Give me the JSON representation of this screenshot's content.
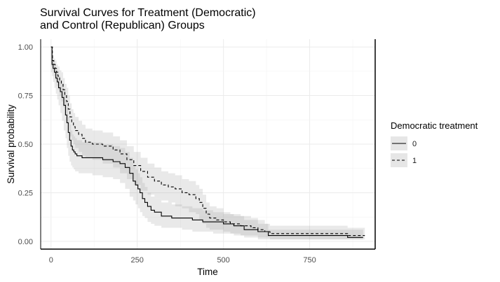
{
  "chart_data": {
    "type": "line",
    "subtype": "step",
    "title_lines": [
      "Survival Curves for Treatment (Democratic)",
      "and Control (Republican) Groups"
    ],
    "xlabel": "Time",
    "ylabel": "Survival probability",
    "xlim": [
      -30,
      940
    ],
    "ylim": [
      -0.04,
      1.04
    ],
    "xticks": [
      0,
      250,
      500,
      750
    ],
    "xtick_labels": [
      "0",
      "250",
      "500",
      "750"
    ],
    "yticks": [
      0,
      0.25,
      0.5,
      0.75,
      1
    ],
    "ytick_labels": [
      "0.00",
      "0.25",
      "0.50",
      "0.75",
      "1.00"
    ],
    "grid": true,
    "legend": {
      "title": "Democratic treatment",
      "position": "right",
      "entries": [
        "0",
        "1"
      ]
    },
    "series": [
      {
        "name": "0",
        "line_style": "solid",
        "color": "#000000",
        "x": [
          0,
          3,
          6,
          10,
          14,
          18,
          22,
          27,
          32,
          37,
          42,
          46,
          50,
          54,
          58,
          62,
          66,
          70,
          75,
          80,
          90,
          100,
          120,
          150,
          180,
          200,
          215,
          228,
          238,
          245,
          252,
          258,
          265,
          272,
          280,
          290,
          300,
          320,
          350,
          380,
          410,
          440,
          470,
          500,
          530,
          560,
          600,
          630,
          860,
          905
        ],
        "y": [
          1.0,
          0.91,
          0.89,
          0.87,
          0.84,
          0.82,
          0.79,
          0.77,
          0.74,
          0.7,
          0.65,
          0.61,
          0.56,
          0.52,
          0.49,
          0.47,
          0.46,
          0.45,
          0.44,
          0.44,
          0.43,
          0.43,
          0.43,
          0.42,
          0.41,
          0.4,
          0.38,
          0.35,
          0.31,
          0.29,
          0.27,
          0.25,
          0.22,
          0.2,
          0.18,
          0.16,
          0.15,
          0.13,
          0.12,
          0.12,
          0.11,
          0.1,
          0.1,
          0.09,
          0.08,
          0.06,
          0.05,
          0.03,
          0.02,
          0.02
        ],
        "ci_lower": [
          1.0,
          0.87,
          0.85,
          0.82,
          0.79,
          0.76,
          0.73,
          0.7,
          0.66,
          0.62,
          0.57,
          0.53,
          0.48,
          0.44,
          0.41,
          0.39,
          0.38,
          0.37,
          0.36,
          0.36,
          0.35,
          0.35,
          0.35,
          0.34,
          0.33,
          0.32,
          0.3,
          0.27,
          0.23,
          0.21,
          0.19,
          0.17,
          0.15,
          0.13,
          0.12,
          0.1,
          0.09,
          0.08,
          0.07,
          0.07,
          0.06,
          0.05,
          0.05,
          0.04,
          0.04,
          0.03,
          0.02,
          0.01,
          0.01,
          0.01
        ],
        "ci_upper": [
          1.0,
          0.95,
          0.93,
          0.91,
          0.89,
          0.87,
          0.85,
          0.83,
          0.81,
          0.78,
          0.73,
          0.69,
          0.64,
          0.6,
          0.57,
          0.55,
          0.54,
          0.53,
          0.52,
          0.52,
          0.51,
          0.51,
          0.51,
          0.5,
          0.49,
          0.48,
          0.46,
          0.43,
          0.39,
          0.37,
          0.35,
          0.33,
          0.3,
          0.28,
          0.25,
          0.23,
          0.22,
          0.2,
          0.19,
          0.18,
          0.17,
          0.16,
          0.15,
          0.14,
          0.13,
          0.11,
          0.09,
          0.06,
          0.06,
          0.06
        ]
      },
      {
        "name": "1",
        "line_style": "dashed",
        "color": "#000000",
        "x": [
          0,
          4,
          8,
          12,
          16,
          20,
          25,
          30,
          35,
          40,
          45,
          50,
          55,
          60,
          65,
          70,
          80,
          90,
          100,
          120,
          150,
          180,
          200,
          220,
          240,
          260,
          280,
          300,
          320,
          340,
          360,
          380,
          400,
          420,
          430,
          440,
          450,
          460,
          480,
          500,
          520,
          550,
          580,
          600,
          620,
          635,
          860,
          910
        ],
        "y": [
          1.0,
          0.93,
          0.91,
          0.89,
          0.87,
          0.85,
          0.83,
          0.81,
          0.78,
          0.75,
          0.72,
          0.68,
          0.64,
          0.61,
          0.59,
          0.57,
          0.55,
          0.53,
          0.51,
          0.5,
          0.49,
          0.47,
          0.45,
          0.42,
          0.39,
          0.36,
          0.33,
          0.31,
          0.29,
          0.28,
          0.27,
          0.25,
          0.24,
          0.22,
          0.2,
          0.17,
          0.14,
          0.12,
          0.11,
          0.1,
          0.09,
          0.08,
          0.07,
          0.06,
          0.05,
          0.04,
          0.03,
          0.03
        ],
        "ci_lower": [
          1.0,
          0.9,
          0.88,
          0.85,
          0.83,
          0.8,
          0.78,
          0.75,
          0.72,
          0.69,
          0.65,
          0.61,
          0.57,
          0.54,
          0.52,
          0.5,
          0.48,
          0.46,
          0.44,
          0.43,
          0.42,
          0.4,
          0.38,
          0.35,
          0.32,
          0.29,
          0.26,
          0.24,
          0.22,
          0.21,
          0.2,
          0.18,
          0.17,
          0.15,
          0.14,
          0.11,
          0.09,
          0.07,
          0.06,
          0.06,
          0.05,
          0.04,
          0.03,
          0.03,
          0.02,
          0.02,
          0.01,
          0.01
        ],
        "ci_upper": [
          1.0,
          0.96,
          0.94,
          0.93,
          0.91,
          0.9,
          0.88,
          0.87,
          0.84,
          0.81,
          0.79,
          0.75,
          0.71,
          0.68,
          0.66,
          0.64,
          0.62,
          0.6,
          0.58,
          0.57,
          0.56,
          0.54,
          0.52,
          0.49,
          0.46,
          0.43,
          0.4,
          0.38,
          0.36,
          0.35,
          0.34,
          0.32,
          0.31,
          0.29,
          0.27,
          0.24,
          0.2,
          0.18,
          0.17,
          0.15,
          0.14,
          0.13,
          0.12,
          0.11,
          0.09,
          0.08,
          0.07,
          0.07
        ]
      }
    ]
  }
}
